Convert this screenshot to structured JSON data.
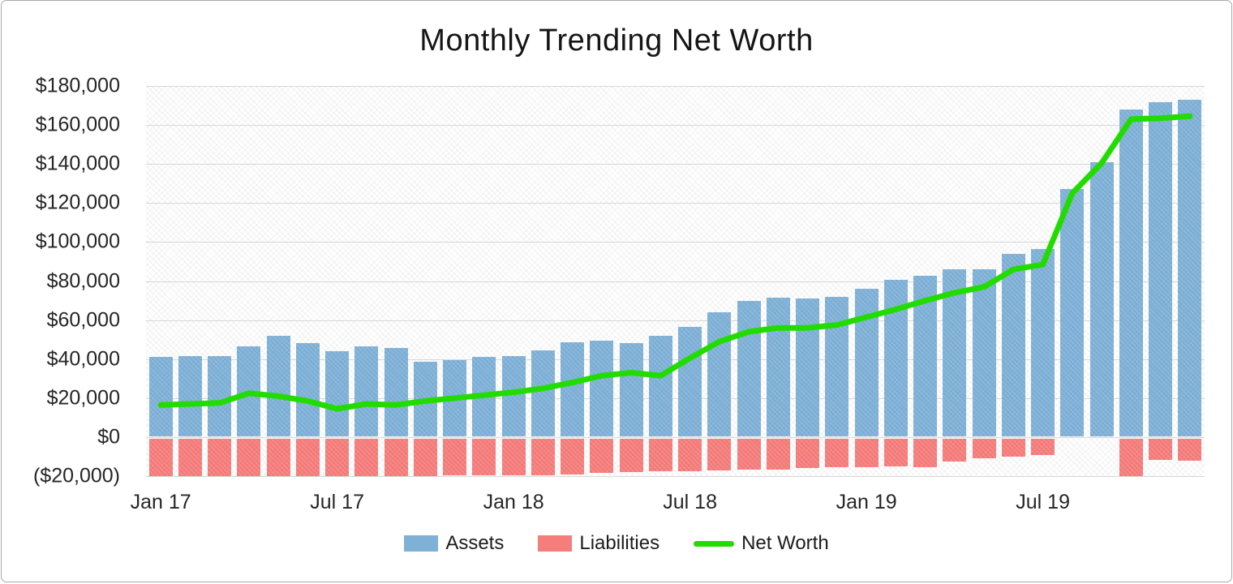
{
  "title": "Monthly Trending Net Worth",
  "legend": {
    "position": "bottom-center",
    "items": [
      {
        "label": "Assets",
        "marker": "bar-swatch",
        "color": "#7fb1d7"
      },
      {
        "label": "Liabilities",
        "marker": "bar-swatch",
        "color": "#f57d7b"
      },
      {
        "label": "Net Worth",
        "marker": "line-swatch",
        "color": "#22dc00"
      }
    ]
  },
  "colors": {
    "assets_bar": "#7fb1d7",
    "liabilities_bar": "#f57d7b",
    "net_worth_line": "#22dc00",
    "gridline": "#d7d7d7",
    "text": "#262626",
    "plot_background": "white with light gray diagonal crosshatch"
  },
  "chart_data": {
    "type": "bar",
    "subtype": "combo bar + line, monthly",
    "title": "Monthly Trending Net Worth",
    "months": [
      "Jan 17",
      "Feb 17",
      "Mar 17",
      "Apr 17",
      "May 17",
      "Jun 17",
      "Jul 17",
      "Aug 17",
      "Sep 17",
      "Oct 17",
      "Nov 17",
      "Dec 17",
      "Jan 18",
      "Feb 18",
      "Mar 18",
      "Apr 18",
      "May 18",
      "Jun 18",
      "Jul 18",
      "Aug 18",
      "Sep 18",
      "Oct 18",
      "Nov 18",
      "Dec 18",
      "Jan 19",
      "Feb 19",
      "Mar 19",
      "Apr 19",
      "May 19",
      "Jun 19",
      "Jul 19",
      "Aug 19",
      "Sep 19",
      "Oct 19",
      "Nov 19",
      "Dec 19"
    ],
    "series": [
      {
        "name": "Assets",
        "type": "bar",
        "color": "#7fb1d7",
        "values": [
          41000,
          41500,
          41500,
          46500,
          52000,
          48000,
          44000,
          46500,
          45500,
          38500,
          39500,
          41000,
          41500,
          44500,
          48500,
          49500,
          48000,
          52000,
          56500,
          64000,
          70000,
          71500,
          71000,
          72000,
          76000,
          80500,
          82500,
          86000,
          86000,
          94000,
          96500,
          127000,
          141000,
          168000,
          171500,
          173000
        ]
      },
      {
        "name": "Liabilities",
        "type": "bar",
        "color": "#f57d7b",
        "values": [
          -20000,
          -20000,
          -20000,
          -20000,
          -20000,
          -20000,
          -20000,
          -20000,
          -20000,
          -20000,
          -19500,
          -19500,
          -19500,
          -19500,
          -19000,
          -18500,
          -18000,
          -17500,
          -17500,
          -17000,
          -16500,
          -16500,
          -16000,
          -15500,
          -15500,
          -15000,
          -15500,
          -12500,
          -11000,
          -10000,
          -9000,
          0,
          0,
          -20000,
          -11500,
          -12000
        ]
      },
      {
        "name": "Net Worth",
        "type": "line",
        "color": "#22dc00",
        "values": [
          16500,
          17000,
          17500,
          22500,
          21000,
          18500,
          14500,
          17000,
          16500,
          18500,
          20000,
          21500,
          23000,
          25000,
          28000,
          31500,
          33000,
          31500,
          40500,
          49000,
          54000,
          56000,
          56000,
          57500,
          61500,
          65500,
          70000,
          74000,
          77000,
          86000,
          88500,
          125000,
          140500,
          163000,
          163500,
          164500
        ]
      }
    ],
    "x_ticks": [
      {
        "label": "Jan 17",
        "month_index": 0
      },
      {
        "label": "Jul 17",
        "month_index": 6
      },
      {
        "label": "Jan 18",
        "month_index": 12
      },
      {
        "label": "Jul 18",
        "month_index": 18
      },
      {
        "label": "Jan 19",
        "month_index": 24
      },
      {
        "label": "Jul 19",
        "month_index": 30
      }
    ],
    "y_ticks": [
      {
        "label": "$180,000",
        "value": 180000
      },
      {
        "label": "$160,000",
        "value": 160000
      },
      {
        "label": "$140,000",
        "value": 140000
      },
      {
        "label": "$120,000",
        "value": 120000
      },
      {
        "label": "$100,000",
        "value": 100000
      },
      {
        "label": "$80,000",
        "value": 80000
      },
      {
        "label": "$60,000",
        "value": 60000
      },
      {
        "label": "$40,000",
        "value": 40000
      },
      {
        "label": "$20,000",
        "value": 20000
      },
      {
        "label": "$0",
        "value": 0
      },
      {
        "label": "($20,000)",
        "value": -20000
      }
    ],
    "ylim": [
      -20000,
      180000
    ],
    "xlabel": "",
    "ylabel": "",
    "grid": "horizontal",
    "legend_position": "bottom-center"
  }
}
